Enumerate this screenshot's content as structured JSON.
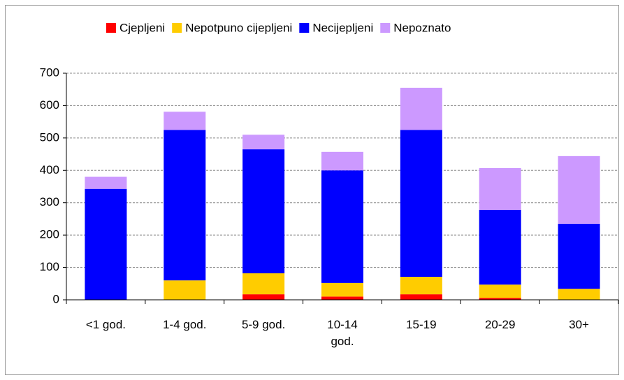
{
  "chart_data": {
    "type": "stacked-bar",
    "categories": [
      "<1 god.",
      "1-4 god.",
      "5-9 god.",
      "10-14 god.",
      "15-19",
      "20-29",
      "30+"
    ],
    "series": [
      {
        "name": "Cjepljeni",
        "color": "#ff0000",
        "values": [
          0,
          0,
          17,
          10,
          17,
          6,
          0
        ]
      },
      {
        "name": "Nepotpuno cijepljeni",
        "color": "#ffcc00",
        "values": [
          0,
          60,
          65,
          42,
          54,
          41,
          34
        ]
      },
      {
        "name": "Necijepljeni",
        "color": "#0000ff",
        "values": [
          343,
          465,
          383,
          348,
          454,
          231,
          201
        ]
      },
      {
        "name": "Nepoznato",
        "color": "#cc99ff",
        "values": [
          37,
          56,
          45,
          57,
          130,
          129,
          209
        ]
      }
    ],
    "ylim": [
      0,
      700
    ],
    "yticks": [
      0,
      100,
      200,
      300,
      400,
      500,
      600,
      700
    ],
    "grid": true,
    "legend": "top"
  }
}
